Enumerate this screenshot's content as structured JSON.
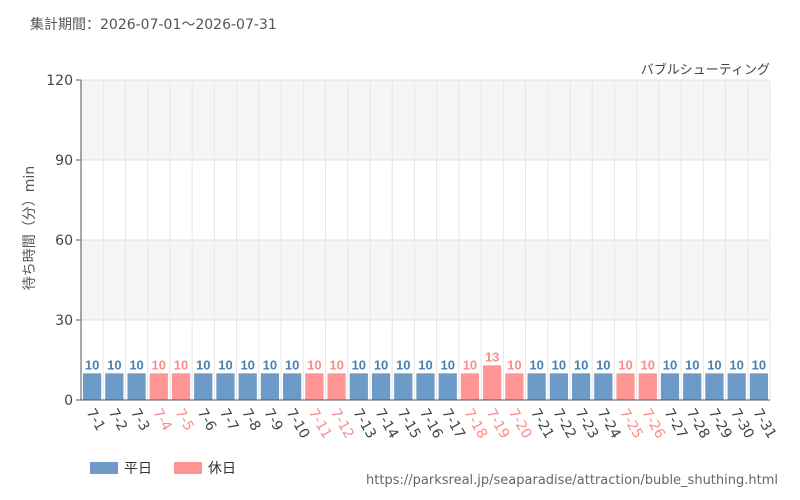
{
  "header": {
    "period": "集計期間：2026-07-01～2026-07-31"
  },
  "legend": {
    "weekday_label": "平日",
    "holiday_label": "休日"
  },
  "colors": {
    "weekday": "#6b9bc6",
    "holiday": "#ff9595",
    "holiday_text": "#ff8a8a",
    "weekday_text": "#4a7fb3"
  },
  "source": "https://parksreal.jp/seaparadise/attraction/buble_shuthing.html",
  "chart_data": {
    "type": "bar",
    "title": "バブルシューティング",
    "ylabel": "待ち時間（分）min",
    "ylim": [
      0,
      120
    ],
    "yticks": [
      0,
      30,
      60,
      90,
      120
    ],
    "categories": [
      "7-1",
      "7-2",
      "7-3",
      "7-4",
      "7-5",
      "7-6",
      "7-7",
      "7-8",
      "7-9",
      "7-10",
      "7-11",
      "7-12",
      "7-13",
      "7-14",
      "7-15",
      "7-16",
      "7-17",
      "7-18",
      "7-19",
      "7-20",
      "7-21",
      "7-22",
      "7-23",
      "7-24",
      "7-25",
      "7-26",
      "7-27",
      "7-28",
      "7-29",
      "7-30",
      "7-31"
    ],
    "values": [
      10,
      10,
      10,
      10,
      10,
      10,
      10,
      10,
      10,
      10,
      10,
      10,
      10,
      10,
      10,
      10,
      10,
      10,
      13,
      10,
      10,
      10,
      10,
      10,
      10,
      10,
      10,
      10,
      10,
      10,
      10
    ],
    "day_type": [
      "weekday",
      "weekday",
      "weekday",
      "holiday",
      "holiday",
      "weekday",
      "weekday",
      "weekday",
      "weekday",
      "weekday",
      "holiday",
      "holiday",
      "weekday",
      "weekday",
      "weekday",
      "weekday",
      "weekday",
      "holiday",
      "holiday",
      "holiday",
      "weekday",
      "weekday",
      "weekday",
      "weekday",
      "holiday",
      "holiday",
      "weekday",
      "weekday",
      "weekday",
      "weekday",
      "weekday"
    ],
    "grid": true,
    "legend_position": "bottom-left"
  }
}
